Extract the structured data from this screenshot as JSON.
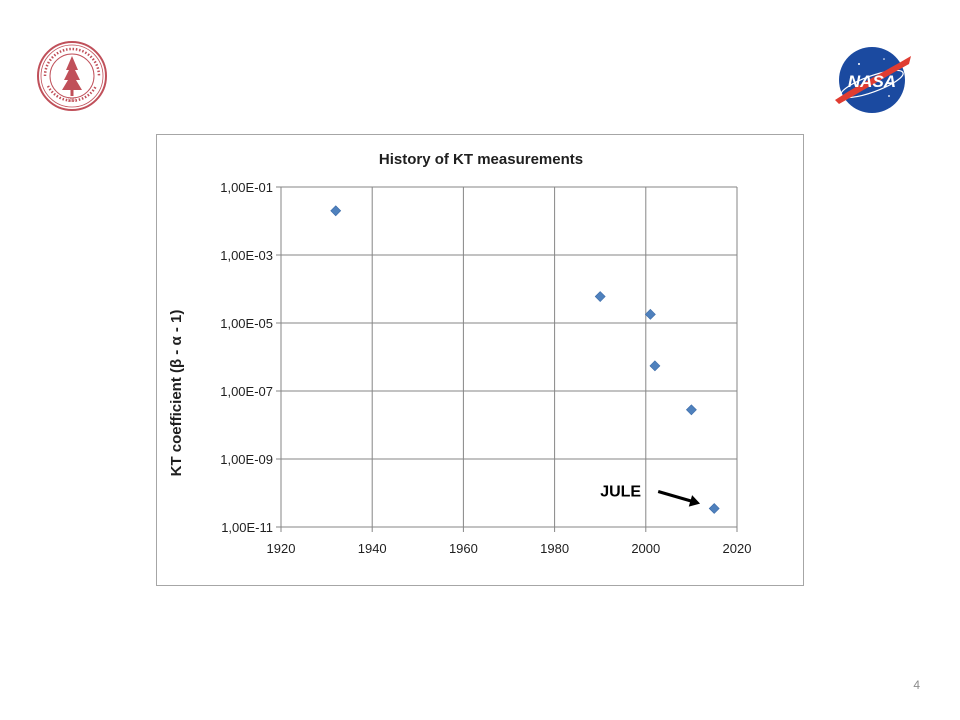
{
  "slide": {
    "number": "4"
  },
  "logos": {
    "left": {
      "name": "stanford-university-seal",
      "year_text": "1891"
    },
    "right": {
      "name": "nasa-meatball",
      "text": "NASA"
    }
  },
  "colors": {
    "marker": "#4f81bd",
    "gridline": "#868686",
    "axis_text": "#1f1f1f",
    "stanford_red": "#c0505a",
    "nasa_blue": "#1b4aa0",
    "nasa_red": "#e03c31"
  },
  "chart_data": {
    "type": "scatter",
    "title": "History of KT measurements",
    "xlabel": "",
    "ylabel": "KT coefficient (β - α - 1)",
    "y_scale": "log",
    "xlim": [
      1920,
      2020
    ],
    "ylim": [
      1e-11,
      0.1
    ],
    "x_ticks": [
      "1920",
      "1940",
      "1960",
      "1980",
      "2000",
      "2020"
    ],
    "y_ticks": [
      "1,00E-11",
      "1,00E-09",
      "1,00E-07",
      "1,00E-05",
      "1,00E-03",
      "1,00E-01"
    ],
    "grid": true,
    "points": [
      {
        "x": 1932,
        "y": 0.02
      },
      {
        "x": 1990,
        "y": 6e-05
      },
      {
        "x": 2001,
        "y": 1.8e-05
      },
      {
        "x": 2002,
        "y": 5.5e-07
      },
      {
        "x": 2010,
        "y": 2.8e-08
      },
      {
        "x": 2015,
        "y": 3.5e-11
      }
    ],
    "annotations": [
      {
        "text": "JULE",
        "target_point": 5
      }
    ]
  }
}
